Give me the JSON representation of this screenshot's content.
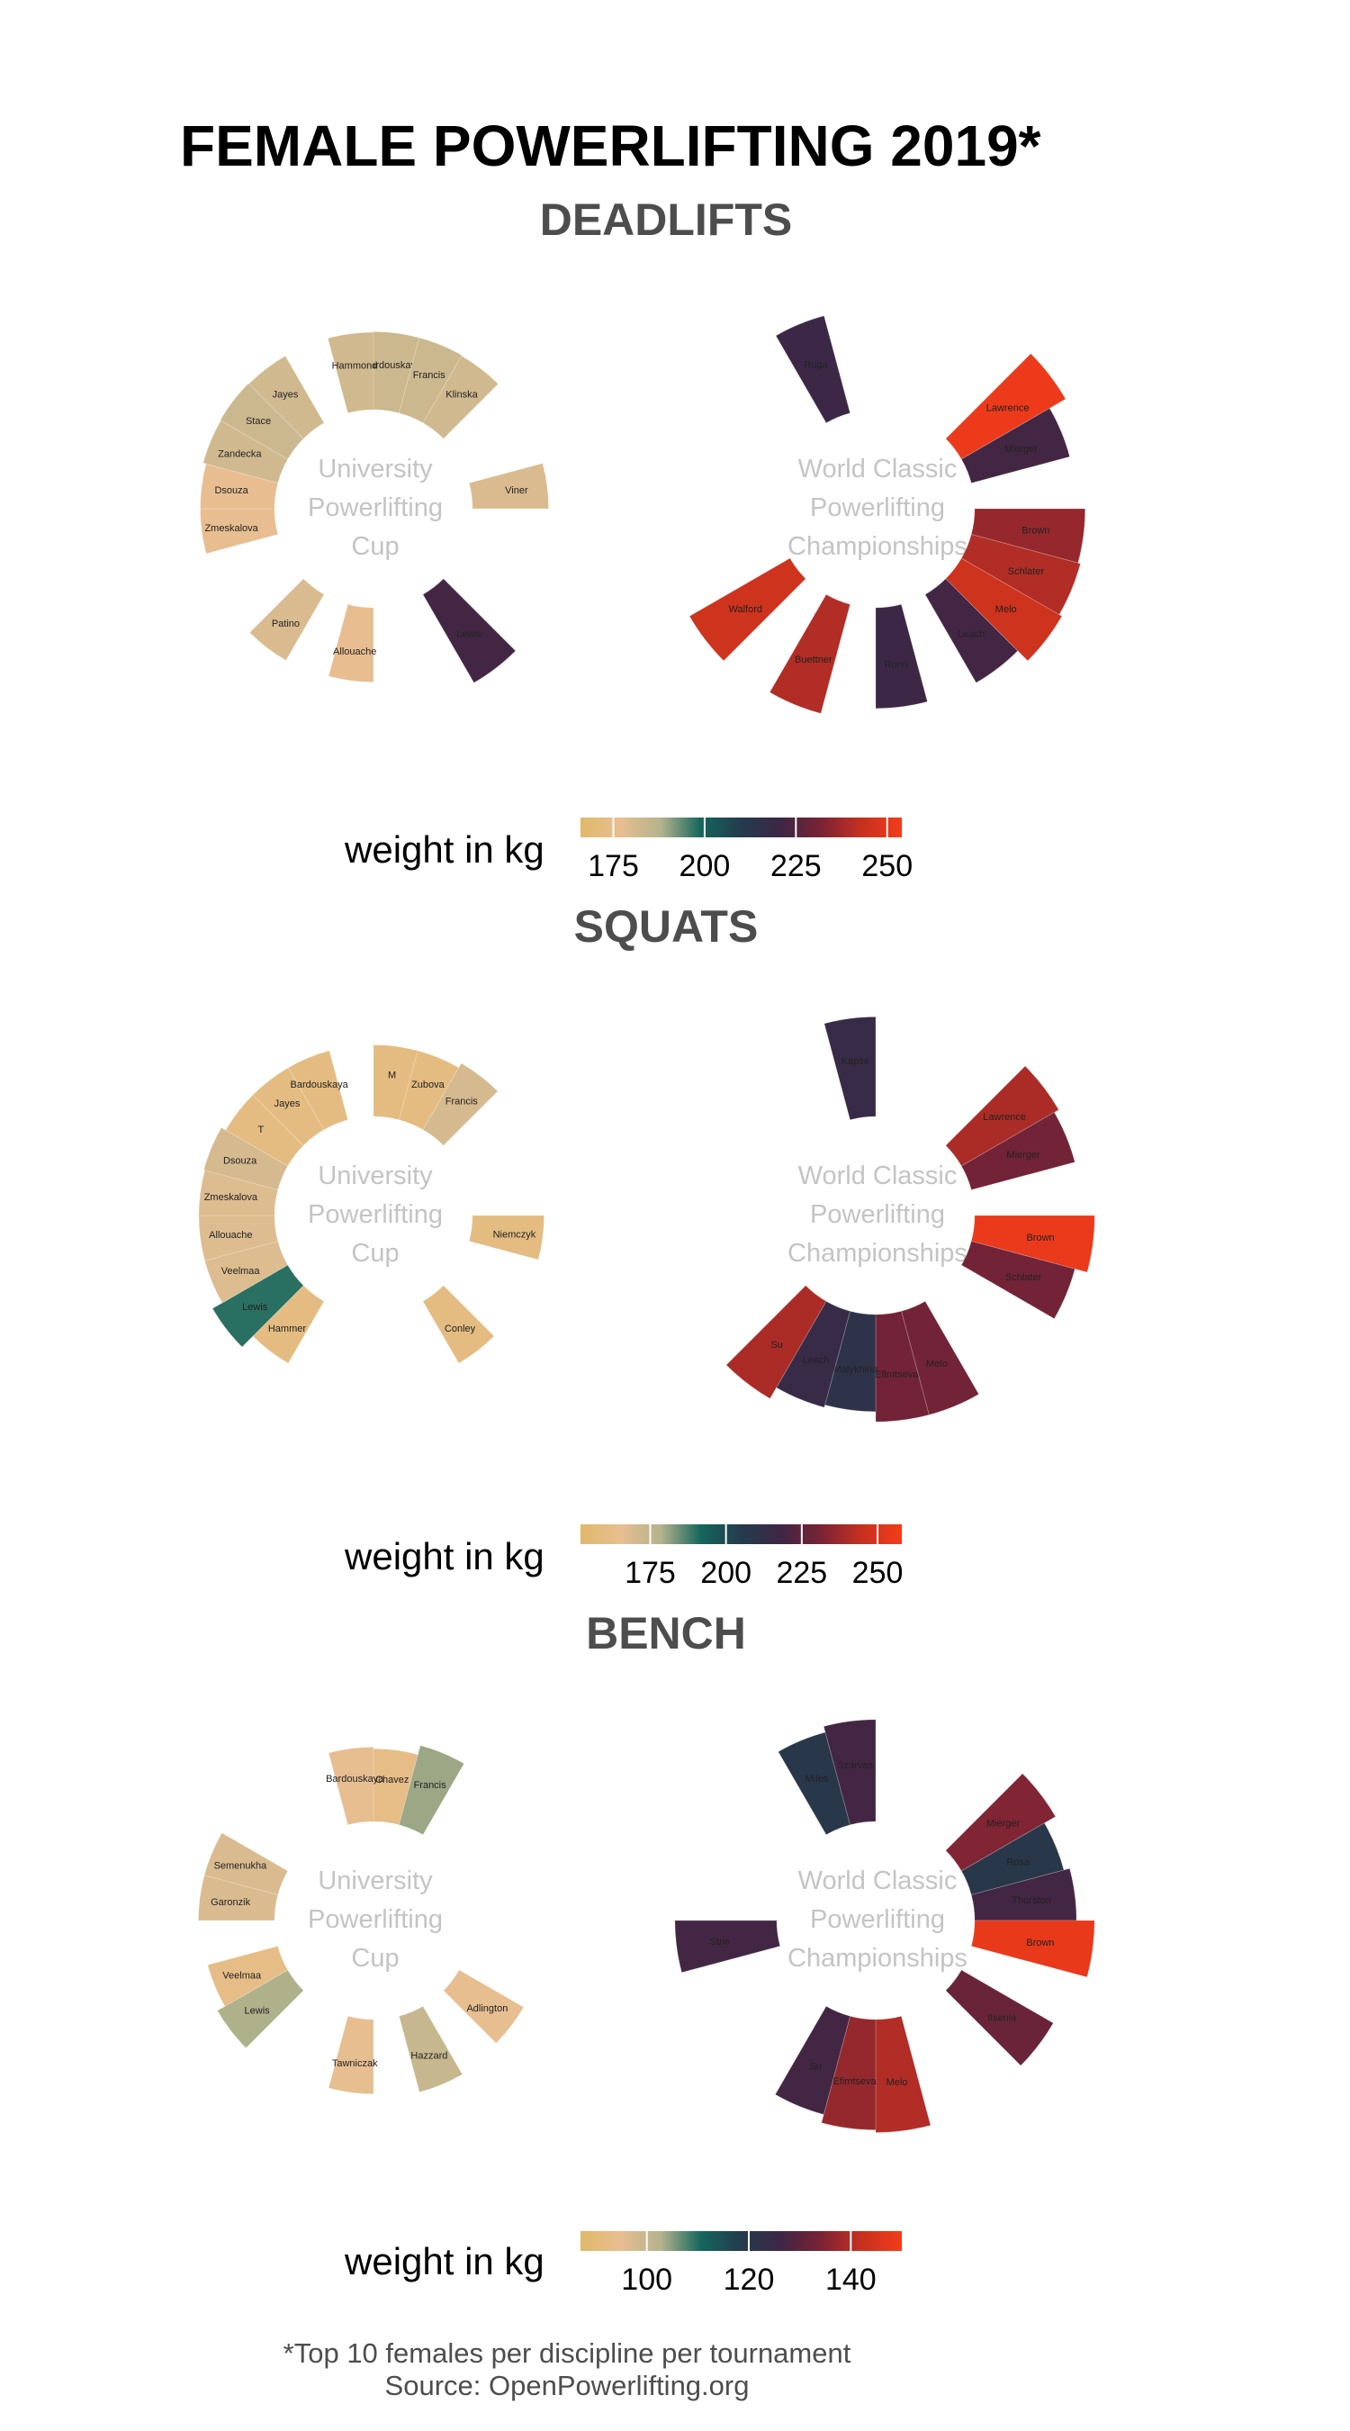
{
  "title": "FEMALE POWERLIFTING 2019*",
  "caption": {
    "line1": "*Top 10 females per discipline per tournament",
    "line2": "Source: OpenPowerlifting.org"
  },
  "colors": {
    "gradient": [
      "#dfb96a",
      "#e8be90",
      "#b4b38d",
      "#14665c",
      "#243b4d",
      "#3e2645",
      "#7a2335",
      "#c6311f",
      "#f43c1a"
    ]
  },
  "chart_data": [
    {
      "type": "polar-bar",
      "section": "DEADLIFTS",
      "legend_title": "weight in kg",
      "legend_ticks": [
        175,
        200,
        225,
        250
      ],
      "color_range": [
        166,
        254
      ],
      "panels": [
        {
          "name": "University Powerlifting Cup",
          "center_lines": [
            "University",
            "Powerlifting",
            "Cup"
          ],
          "athletes": [
            {
              "label": "Bardouskaya",
              "value": 183,
              "slot": 0
            },
            {
              "label": "Francis",
              "value": 183,
              "slot": 1
            },
            {
              "label": "Klinska",
              "value": 182,
              "slot": 2
            },
            {
              "label": "Viner",
              "value": 180,
              "slot": 5
            },
            {
              "label": "Lewis",
              "value": 222,
              "slot": 9
            },
            {
              "label": "Allouache",
              "value": 177,
              "slot": 12
            },
            {
              "label": "Patino",
              "value": 180,
              "slot": 14
            },
            {
              "label": "Zmeskalova",
              "value": 177,
              "slot": 17
            },
            {
              "label": "Dsouza",
              "value": 177,
              "slot": 18
            },
            {
              "label": "Zandecka",
              "value": 182,
              "slot": 19
            },
            {
              "label": "Stace",
              "value": 183,
              "slot": 20
            },
            {
              "label": "Jayes",
              "value": 182,
              "slot": 21
            },
            {
              "label": "Hammond",
              "value": 182,
              "slot": 23
            }
          ]
        },
        {
          "name": "World Classic Powerlifting Championships",
          "center_lines": [
            "World Classic",
            "Powerlifting",
            "Championships"
          ],
          "athletes": [
            {
              "label": "Lawrence",
              "value": 252,
              "slot": 3
            },
            {
              "label": "Mierger",
              "value": 222,
              "slot": 4
            },
            {
              "label": "Brown",
              "value": 236,
              "slot": 6
            },
            {
              "label": "Schlater",
              "value": 240,
              "slot": 7
            },
            {
              "label": "Melo",
              "value": 245,
              "slot": 8
            },
            {
              "label": "Leach",
              "value": 222,
              "slot": 9
            },
            {
              "label": "Ronn",
              "value": 220,
              "slot": 11
            },
            {
              "label": "Buettner",
              "value": 240,
              "slot": 13
            },
            {
              "label": "Walford",
              "value": 245,
              "slot": 15
            },
            {
              "label": "Ruga",
              "value": 220,
              "slot": 22
            }
          ]
        }
      ]
    },
    {
      "type": "polar-bar",
      "section": "SQUATS",
      "legend_title": "weight in kg",
      "legend_ticks": [
        175,
        200,
        225,
        250
      ],
      "color_range": [
        152,
        258
      ],
      "panels": [
        {
          "name": "University Powerlifting Cup",
          "center_lines": [
            "University",
            "Powerlifting",
            "Cup"
          ],
          "athletes": [
            {
              "label": "M",
              "value": 160,
              "slot": 0
            },
            {
              "label": "Zubova",
              "value": 160,
              "slot": 1
            },
            {
              "label": "Francis",
              "value": 170,
              "slot": 2
            },
            {
              "label": "Niemczyk",
              "value": 160,
              "slot": 6
            },
            {
              "label": "Conley",
              "value": 160,
              "slot": 9
            },
            {
              "label": "Hammer",
              "value": 160,
              "slot": 14
            },
            {
              "label": "Lewis",
              "value": 190,
              "slot": 15
            },
            {
              "label": "Veelmaa",
              "value": 168,
              "slot": 16
            },
            {
              "label": "Allouache",
              "value": 168,
              "slot": 17
            },
            {
              "label": "Zmeskalova",
              "value": 168,
              "slot": 18
            },
            {
              "label": "Dsouza",
              "value": 170,
              "slot": 19
            },
            {
              "label": "T",
              "value": 160,
              "slot": 20
            },
            {
              "label": "Jayes",
              "value": 160,
              "slot": 21
            },
            {
              "label": "Bardouskaya",
              "value": 160,
              "slot": 22
            }
          ]
        },
        {
          "name": "World Classic Powerlifting Championships",
          "center_lines": [
            "World Classic",
            "Powerlifting",
            "Championships"
          ],
          "athletes": [
            {
              "label": "Lawrence",
              "value": 240,
              "slot": 3
            },
            {
              "label": "Mierger",
              "value": 230,
              "slot": 4
            },
            {
              "label": "Brown",
              "value": 255,
              "slot": 6
            },
            {
              "label": "Schlater",
              "value": 230,
              "slot": 7
            },
            {
              "label": "Melo",
              "value": 230,
              "slot": 10
            },
            {
              "label": "Efimtseva",
              "value": 230,
              "slot": 11
            },
            {
              "label": "Malykhina",
              "value": 210,
              "slot": 12
            },
            {
              "label": "Leach",
              "value": 215,
              "slot": 13
            },
            {
              "label": "Su",
              "value": 240,
              "slot": 14
            },
            {
              "label": "Kapse",
              "value": 215,
              "slot": 23
            }
          ]
        }
      ]
    },
    {
      "type": "polar-bar",
      "section": "BENCH",
      "legend_title": "weight in kg",
      "legend_ticks": [
        100,
        120,
        140
      ],
      "color_range": [
        87,
        150
      ],
      "panels": [
        {
          "name": "University Powerlifting Cup",
          "center_lines": [
            "University",
            "Powerlifting",
            "Cup"
          ],
          "athletes": [
            {
              "label": "Chavez",
              "value": 93,
              "slot": 0
            },
            {
              "label": "Francis",
              "value": 104,
              "slot": 1
            },
            {
              "label": "Adlington",
              "value": 95,
              "slot": 8
            },
            {
              "label": "Hazzard",
              "value": 100,
              "slot": 10
            },
            {
              "label": "Tawniczak",
              "value": 95,
              "slot": 12
            },
            {
              "label": "Lewis",
              "value": 103,
              "slot": 15
            },
            {
              "label": "Veelmaa",
              "value": 93,
              "slot": 16
            },
            {
              "label": "Garonzik",
              "value": 97,
              "slot": 18
            },
            {
              "label": "Semenukha",
              "value": 97,
              "slot": 19
            },
            {
              "label": "Bardouskaya",
              "value": 95,
              "slot": 23
            }
          ]
        },
        {
          "name": "World Classic Powerlifting Championships",
          "center_lines": [
            "World Classic",
            "Powerlifting",
            "Championships"
          ],
          "athletes": [
            {
              "label": "Mierger",
              "value": 135,
              "slot": 3
            },
            {
              "label": "Rosa",
              "value": 120,
              "slot": 4
            },
            {
              "label": "Thurston",
              "value": 127,
              "slot": 5
            },
            {
              "label": "Brown",
              "value": 148,
              "slot": 6
            },
            {
              "label": "Ilsenia",
              "value": 132,
              "slot": 8
            },
            {
              "label": "Melo",
              "value": 140,
              "slot": 11
            },
            {
              "label": "Efimtseva",
              "value": 137,
              "slot": 12
            },
            {
              "label": "Su",
              "value": 127,
              "slot": 13
            },
            {
              "label": "Strie",
              "value": 127,
              "slot": 17
            },
            {
              "label": "Miles",
              "value": 120,
              "slot": 22
            },
            {
              "label": "Szarvas",
              "value": 127,
              "slot": 23
            }
          ]
        }
      ]
    }
  ]
}
